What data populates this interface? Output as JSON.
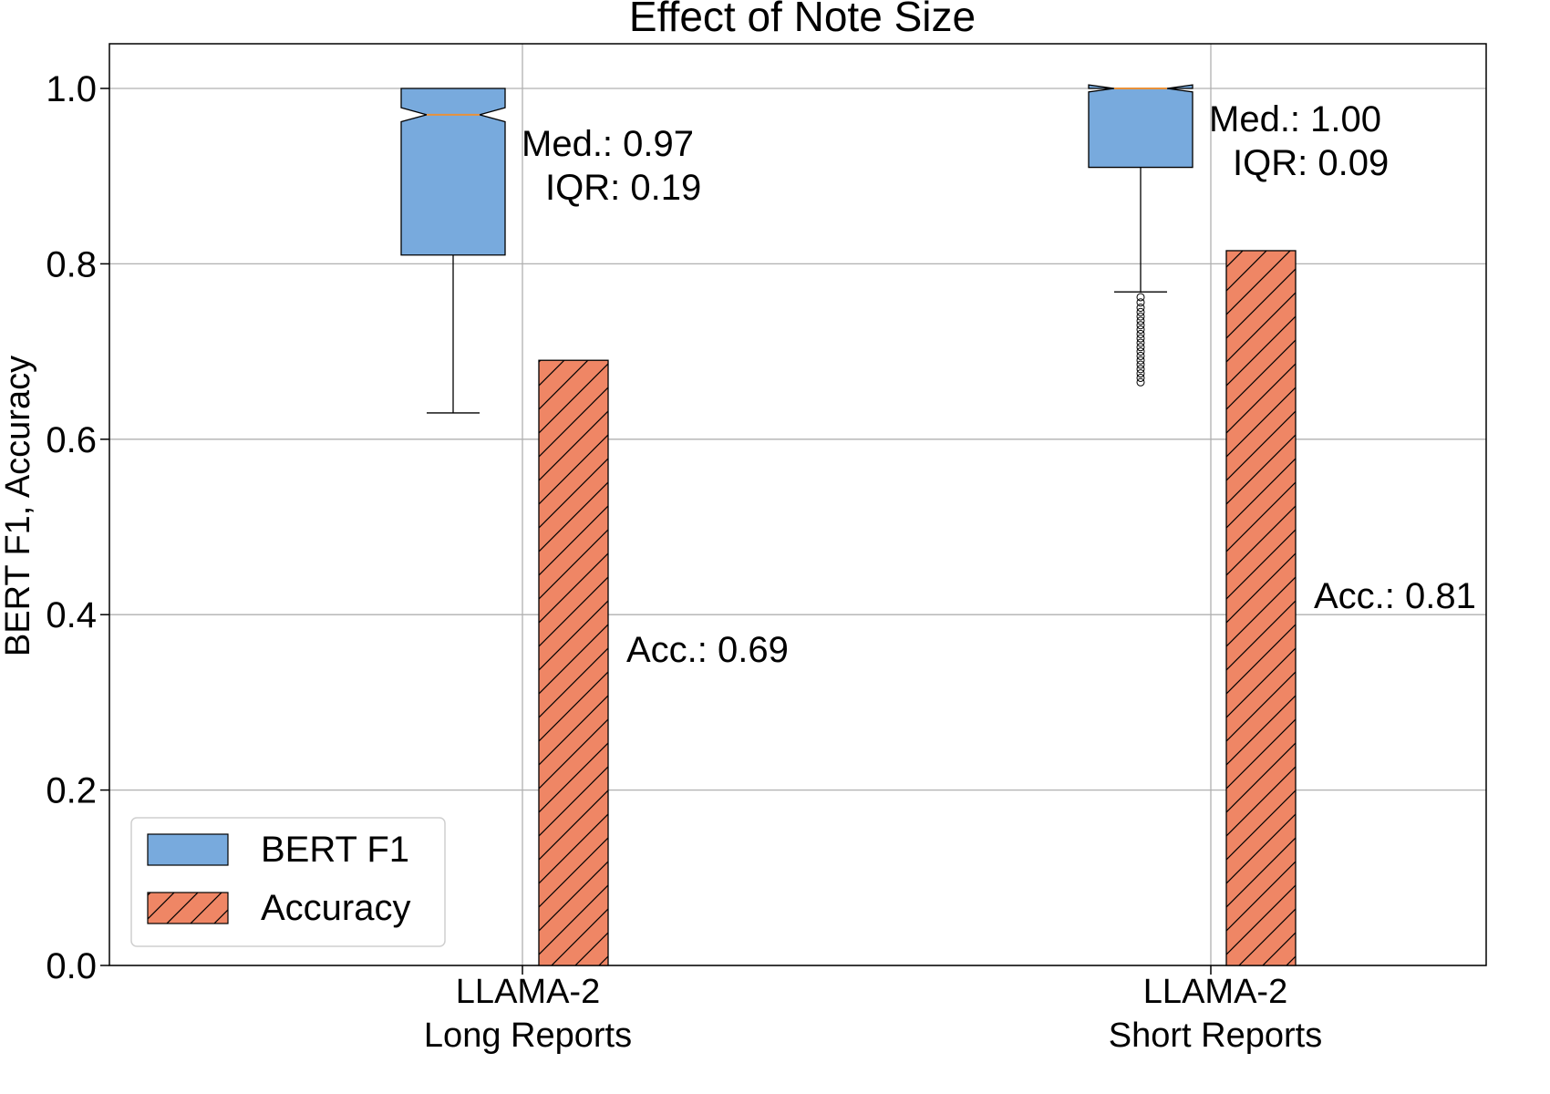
{
  "chart_data": {
    "type": "box_and_bar",
    "title": "Effect of Note Size",
    "ylabel": "BERT F1, Accuracy",
    "xlabel": "",
    "ylim": [
      0,
      1.05
    ],
    "yticks": [
      "0.0",
      "0.2",
      "0.4",
      "0.6",
      "0.8",
      "1.0"
    ],
    "ytick_values": [
      0,
      0.2,
      0.4,
      0.6,
      0.8,
      1.0
    ],
    "grid": true,
    "categories": [
      {
        "line1": "LLAMA-2",
        "line2": "Long Reports"
      },
      {
        "line1": "LLAMA-2",
        "line2": "Short Reports"
      }
    ],
    "boxes": [
      {
        "series": "BERT F1",
        "median": 0.97,
        "q1": 0.81,
        "q3": 1.0,
        "whisker_low": 0.63,
        "whisker_high": 1.0,
        "notch_low": 0.962,
        "notch_high": 0.978,
        "outliers": [],
        "median_label": "Med.: 0.97",
        "iqr_label": "IQR: 0.19"
      },
      {
        "series": "BERT F1",
        "median": 1.0,
        "q1": 0.91,
        "q3": 1.0,
        "whisker_low": 0.768,
        "whisker_high": 1.0,
        "notch_low": 0.996,
        "notch_high": 1.004,
        "outliers": [
          0.762,
          0.756,
          0.75,
          0.745,
          0.74,
          0.735,
          0.73,
          0.725,
          0.72,
          0.715,
          0.71,
          0.705,
          0.7,
          0.695,
          0.69,
          0.685,
          0.68,
          0.675,
          0.67,
          0.665
        ],
        "median_label": "Med.: 1.00",
        "iqr_label": "IQR: 0.09"
      }
    ],
    "bars": [
      {
        "series": "Accuracy",
        "value": 0.69,
        "label": "Acc.: 0.69"
      },
      {
        "series": "Accuracy",
        "value": 0.815,
        "label": "Acc.: 0.81"
      }
    ],
    "legend": {
      "position": "lower-left",
      "entries": [
        {
          "label": "BERT F1",
          "style": "box"
        },
        {
          "label": "Accuracy",
          "style": "hatched-bar"
        }
      ]
    },
    "colors": {
      "box_fill": "#78aadd",
      "bar_fill": "#ef8665",
      "median_line": "#e8913a",
      "grid": "#b0b0b0",
      "edge": "#000000"
    }
  }
}
